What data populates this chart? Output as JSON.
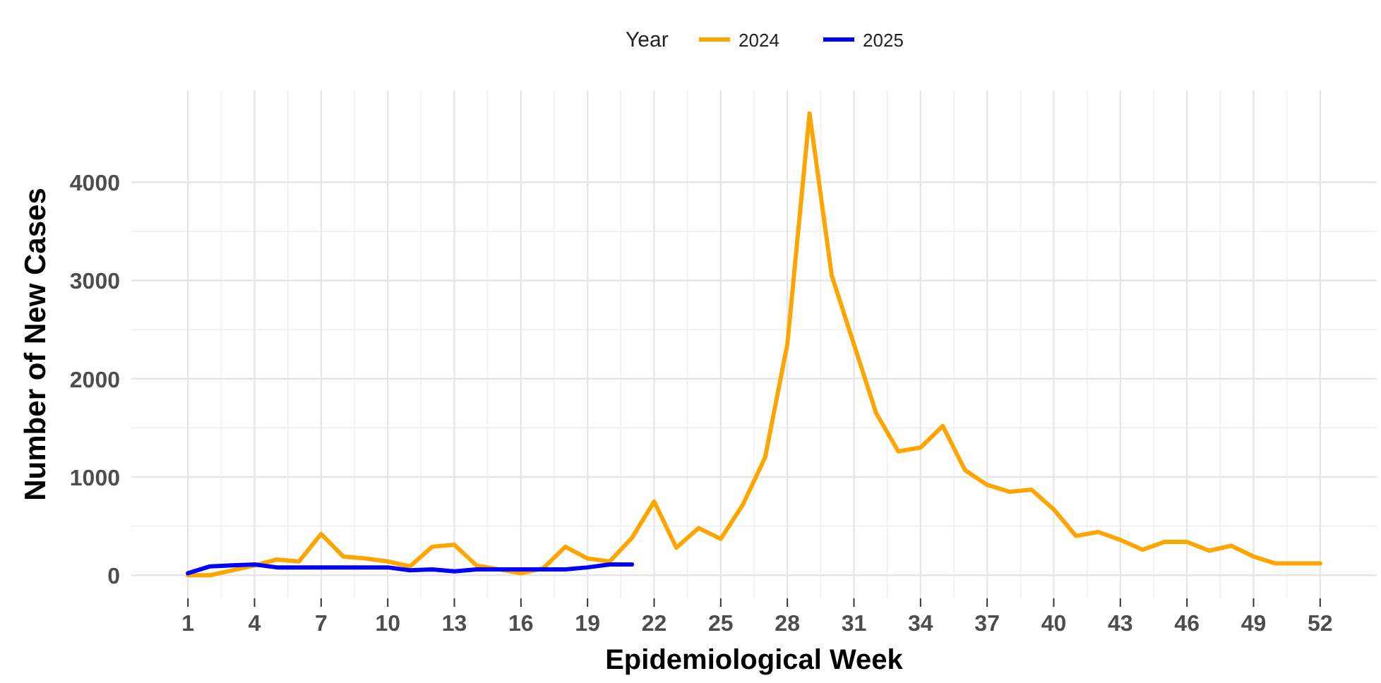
{
  "chart_data": {
    "type": "line",
    "xlabel": "Epidemiological Week",
    "ylabel": "Number of New Cases",
    "legend_title": "Year",
    "legend": "top",
    "grid": true,
    "line_style": "solid",
    "marker": "none",
    "x": [
      1,
      2,
      3,
      4,
      5,
      6,
      7,
      8,
      9,
      10,
      11,
      12,
      13,
      14,
      15,
      16,
      17,
      18,
      19,
      20,
      21,
      22,
      23,
      24,
      25,
      26,
      27,
      28,
      29,
      30,
      31,
      32,
      33,
      34,
      35,
      36,
      37,
      38,
      39,
      40,
      41,
      42,
      43,
      44,
      45,
      46,
      47,
      48,
      49,
      50,
      51,
      52
    ],
    "xlim": [
      -1.55,
      54.55
    ],
    "xticks": [
      1,
      4,
      7,
      10,
      13,
      16,
      19,
      22,
      25,
      28,
      31,
      34,
      37,
      40,
      43,
      46,
      49,
      52
    ],
    "ylim": [
      -235,
      4935
    ],
    "yticks": [
      0,
      1000,
      2000,
      3000,
      4000
    ],
    "series": [
      {
        "name": "2024",
        "color": "#ffa500",
        "values": [
          0,
          0,
          50,
          100,
          160,
          140,
          420,
          190,
          170,
          140,
          90,
          290,
          310,
          100,
          60,
          20,
          70,
          290,
          170,
          140,
          380,
          750,
          280,
          480,
          370,
          720,
          1200,
          2350,
          4700,
          3050,
          2350,
          1650,
          1260,
          1300,
          1520,
          1070,
          920,
          850,
          870,
          670,
          400,
          440,
          360,
          260,
          340,
          340,
          250,
          300,
          190,
          120,
          120,
          120
        ]
      },
      {
        "name": "2025",
        "color": "#0000ff",
        "values": [
          20,
          90,
          100,
          110,
          80,
          80,
          80,
          80,
          80,
          80,
          50,
          60,
          40,
          60,
          60,
          60,
          60,
          60,
          80,
          110,
          110,
          null,
          null,
          null,
          null,
          null,
          null,
          null,
          null,
          null,
          null,
          null,
          null,
          null,
          null,
          null,
          null,
          null,
          null,
          null,
          null,
          null,
          null,
          null,
          null,
          null,
          null,
          null,
          null,
          null,
          null,
          null
        ]
      }
    ]
  }
}
